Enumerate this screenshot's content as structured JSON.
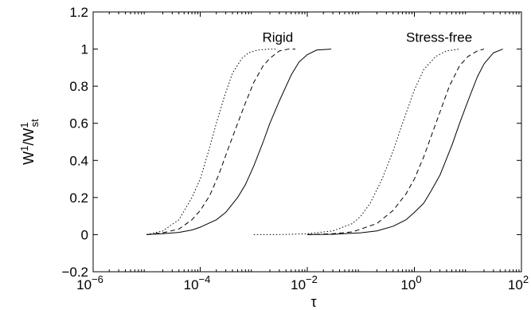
{
  "chart_data": {
    "type": "line",
    "title": "",
    "xlabel": "τ",
    "ylabel_main": "W",
    "ylabel_main_sup": "1",
    "ylabel_denominator": "W",
    "ylabel_denominator_sup": "1",
    "ylabel_denominator_sub": "st",
    "xscale": "log",
    "xlim": [
      1e-06,
      100
    ],
    "ylim": [
      -0.2,
      1.2
    ],
    "grid": false,
    "legend": "none",
    "x_ticks": [
      {
        "value": 1e-06,
        "base": "10",
        "exp": "−6"
      },
      {
        "value": 0.0001,
        "base": "10",
        "exp": "−4"
      },
      {
        "value": 0.01,
        "base": "10",
        "exp": "−2"
      },
      {
        "value": 1,
        "base": "10",
        "exp": "0"
      },
      {
        "value": 100,
        "base": "10",
        "exp": "2"
      }
    ],
    "y_ticks": [
      "−0.2",
      "0",
      "0.2",
      "0.4",
      "0.6",
      "0.8",
      "1",
      "1.2"
    ],
    "y_tick_values": [
      -0.2,
      0,
      0.2,
      0.4,
      0.6,
      0.8,
      1,
      1.2
    ],
    "annotations": [
      {
        "text": "Rigid",
        "x": 0.0028,
        "y": 1.04
      },
      {
        "text": "Stress-free",
        "x": 2.9,
        "y": 1.04
      }
    ],
    "series": [
      {
        "group": "Rigid",
        "style": "dotted",
        "color": "#000000",
        "x": [
          1e-05,
          2e-05,
          4e-05,
          7e-05,
          0.0001,
          0.00014,
          0.0002,
          0.00028,
          0.0004,
          0.0006,
          0.0008,
          0.0012,
          0.002,
          0.0028
        ],
        "y": [
          0,
          0.02,
          0.08,
          0.2,
          0.3,
          0.44,
          0.6,
          0.74,
          0.87,
          0.95,
          0.98,
          0.995,
          1,
          1
        ]
      },
      {
        "group": "Rigid",
        "style": "dashed",
        "color": "#000000",
        "x": [
          1e-05,
          2e-05,
          4e-05,
          7e-05,
          0.0001,
          0.00015,
          0.00022,
          0.00032,
          0.0005,
          0.0007,
          0.001,
          0.0015,
          0.002,
          0.003,
          0.0045,
          0.006
        ],
        "y": [
          0,
          0.01,
          0.03,
          0.08,
          0.13,
          0.21,
          0.32,
          0.45,
          0.6,
          0.71,
          0.82,
          0.91,
          0.95,
          0.99,
          1,
          1
        ]
      },
      {
        "group": "Rigid",
        "style": "solid",
        "color": "#000000",
        "x": [
          1e-05,
          2e-05,
          4e-05,
          7e-05,
          0.0001,
          0.0002,
          0.0003,
          0.0005,
          0.0007,
          0.001,
          0.0015,
          0.002,
          0.003,
          0.005,
          0.007,
          0.01,
          0.015,
          0.028
        ],
        "y": [
          0,
          0.005,
          0.012,
          0.025,
          0.04,
          0.08,
          0.12,
          0.2,
          0.27,
          0.37,
          0.5,
          0.6,
          0.72,
          0.86,
          0.93,
          0.97,
          0.995,
          1
        ]
      },
      {
        "group": "Stress-free",
        "style": "dotted",
        "color": "#000000",
        "x": [
          0.001,
          0.003,
          0.01,
          0.03,
          0.07,
          0.1,
          0.15,
          0.25,
          0.4,
          0.6,
          1,
          1.5,
          2.5,
          4,
          7
        ],
        "y": [
          0,
          0,
          0.005,
          0.02,
          0.06,
          0.1,
          0.17,
          0.3,
          0.45,
          0.6,
          0.78,
          0.89,
          0.96,
          0.99,
          1
        ]
      },
      {
        "group": "Stress-free",
        "style": "dashed",
        "color": "#000000",
        "x": [
          0.01,
          0.03,
          0.07,
          0.1,
          0.2,
          0.4,
          0.7,
          1,
          1.5,
          2,
          3,
          4.5,
          7,
          10,
          15,
          20
        ],
        "y": [
          0,
          0.005,
          0.015,
          0.03,
          0.06,
          0.13,
          0.22,
          0.3,
          0.42,
          0.52,
          0.66,
          0.8,
          0.91,
          0.96,
          0.99,
          1
        ]
      },
      {
        "group": "Stress-free",
        "style": "solid",
        "color": "#000000",
        "x": [
          0.01,
          0.03,
          0.1,
          0.2,
          0.4,
          0.7,
          1,
          1.5,
          2,
          3,
          5,
          7,
          10,
          15,
          20,
          30,
          45
        ],
        "y": [
          0,
          0.002,
          0.01,
          0.02,
          0.045,
          0.08,
          0.12,
          0.17,
          0.23,
          0.32,
          0.48,
          0.6,
          0.72,
          0.85,
          0.92,
          0.98,
          1
        ]
      }
    ]
  }
}
